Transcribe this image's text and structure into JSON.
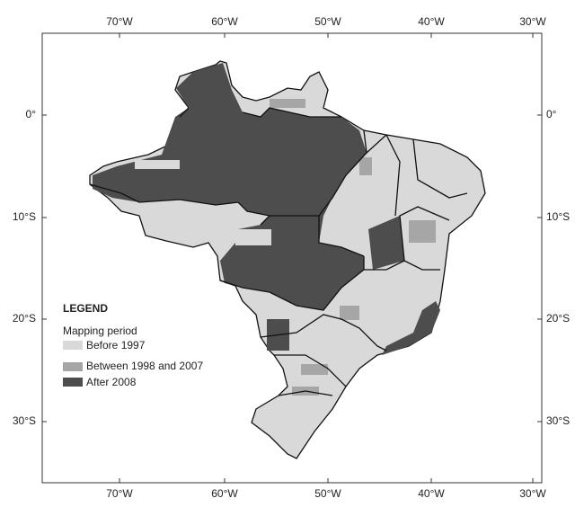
{
  "map": {
    "longitude_labels": [
      "70°W",
      "60°W",
      "50°W",
      "40°W",
      "30°W"
    ],
    "latitude_labels": [
      "0°",
      "10°S",
      "20°S",
      "30°S"
    ],
    "legend": {
      "title": "LEGEND",
      "subtitle": "Mapping period",
      "items": [
        {
          "label": "Before 1997",
          "color": "#d9d9d9"
        },
        {
          "label": "Between 1998 and 2007",
          "color": "#a6a6a6"
        },
        {
          "label": "After 2008",
          "color": "#4d4d4d"
        }
      ]
    }
  }
}
